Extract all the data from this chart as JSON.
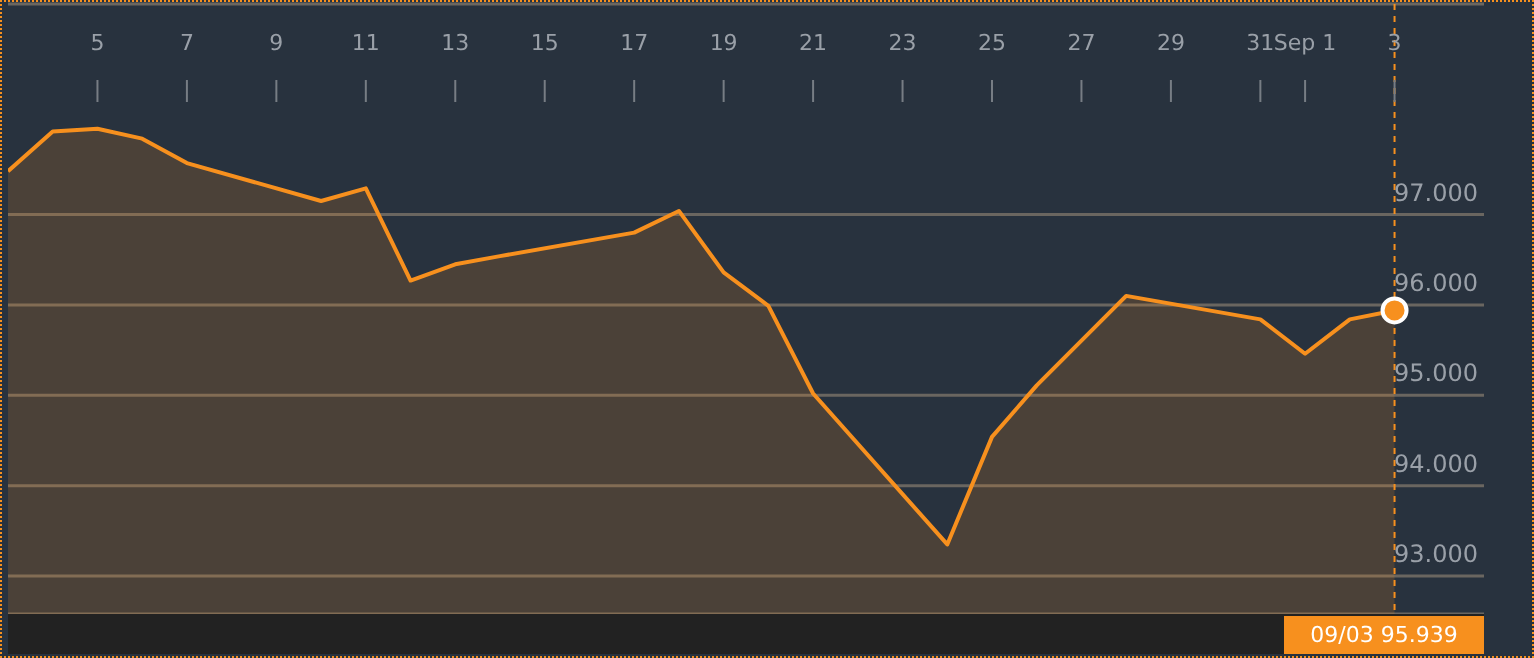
{
  "chart_data": {
    "type": "area",
    "x": [
      "--08-03",
      "--08-04",
      "--08-05",
      "--08-06",
      "--08-07",
      "--08-10",
      "--08-11",
      "--08-12",
      "--08-13",
      "--08-14",
      "--08-17",
      "--08-18",
      "--08-19",
      "--08-20",
      "--08-21",
      "--08-24",
      "--08-25",
      "--08-26",
      "--08-28",
      "--08-31",
      "--09-01",
      "--09-02",
      "--09-03"
    ],
    "values": [
      97.48,
      97.92,
      97.95,
      97.84,
      97.57,
      97.15,
      97.29,
      96.27,
      96.45,
      96.54,
      96.8,
      97.04,
      96.36,
      95.99,
      95.02,
      93.35,
      94.54,
      95.11,
      96.1,
      95.84,
      95.46,
      95.84,
      95.939
    ],
    "color": "#f7901e",
    "xlim": [
      "--08-03",
      "--09-05"
    ],
    "xticks": [
      {
        "value": "--08-05",
        "label": "5"
      },
      {
        "value": "--08-07",
        "label": "7"
      },
      {
        "value": "--08-09",
        "label": "9"
      },
      {
        "value": "--08-11",
        "label": "11"
      },
      {
        "value": "--08-13",
        "label": "13"
      },
      {
        "value": "--08-15",
        "label": "15"
      },
      {
        "value": "--08-17",
        "label": "17"
      },
      {
        "value": "--08-19",
        "label": "19"
      },
      {
        "value": "--08-21",
        "label": "21"
      },
      {
        "value": "--08-23",
        "label": "23"
      },
      {
        "value": "--08-25",
        "label": "25"
      },
      {
        "value": "--08-27",
        "label": "27"
      },
      {
        "value": "--08-29",
        "label": "29"
      },
      {
        "value": "--08-31",
        "label": "31"
      },
      {
        "value": "--09-01",
        "label": "Sep 1"
      },
      {
        "value": "--09-03",
        "label": "3"
      }
    ],
    "ylim": [
      92.58,
      99.33
    ],
    "yticks": [
      {
        "value": 93,
        "label": "93.000"
      },
      {
        "value": 94,
        "label": "94.000"
      },
      {
        "value": 95,
        "label": "95.000"
      },
      {
        "value": 96,
        "label": "96.000"
      },
      {
        "value": 97,
        "label": "97.000"
      }
    ],
    "grid": "y",
    "ref_lines": [
      {
        "axis": "x",
        "value": "--09-03",
        "color": "#f7901e",
        "line_style": "dashed"
      }
    ],
    "annotations": [
      "09/03 95.939"
    ]
  }
}
